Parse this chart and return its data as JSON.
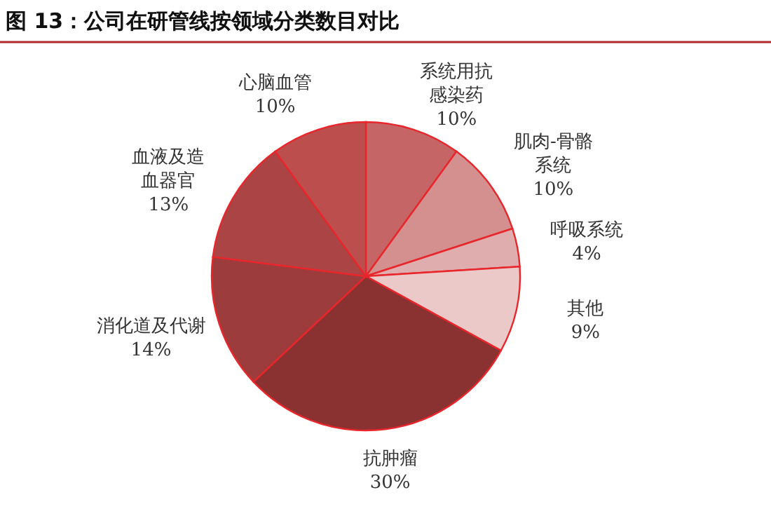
{
  "chart_data": {
    "type": "pie",
    "title": "图 13：公司在研管线按领域分类数目对比",
    "categories": [
      "系统用抗感染药",
      "肌肉-骨骼系统",
      "呼吸系统",
      "其他",
      "抗肿瘤",
      "消化道及代谢",
      "血液及造血器官",
      "心脑血管"
    ],
    "values": [
      10,
      10,
      4,
      9,
      30,
      14,
      13,
      10
    ],
    "value_labels": [
      "10%",
      "10%",
      "4%",
      "9%",
      "30%",
      "14%",
      "13%",
      "10%"
    ],
    "colors": [
      "#c66565",
      "#d48f8f",
      "#dfadad",
      "#ecc9c9",
      "#8a3232",
      "#9c3c3c",
      "#ab4545",
      "#bd4e4e"
    ]
  }
}
